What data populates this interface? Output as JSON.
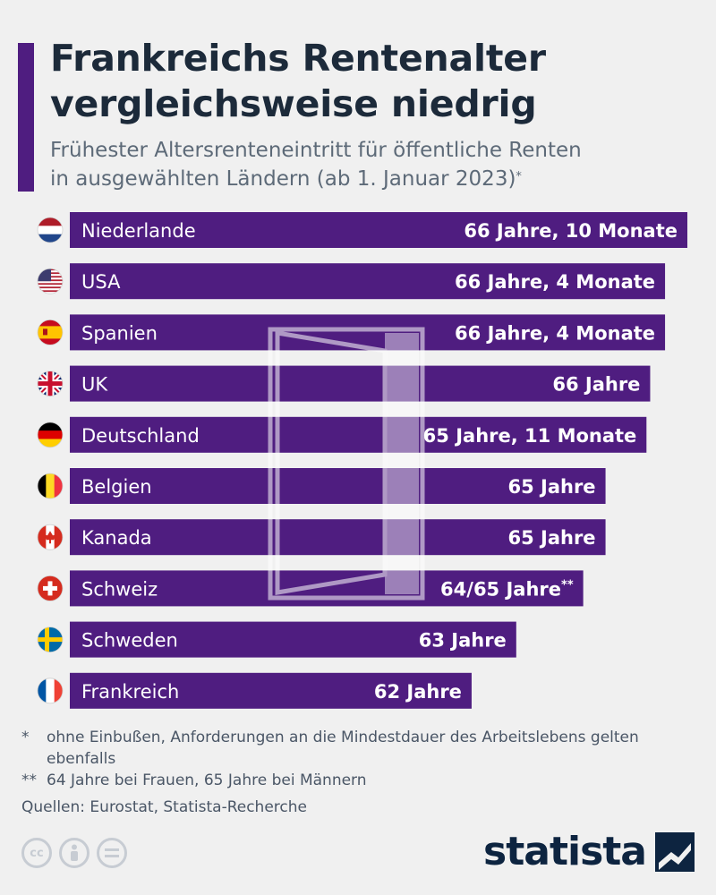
{
  "header": {
    "title_line1": "Frankreichs Rentenalter",
    "title_line2": "vergleichsweise niedrig",
    "subtitle_line1": "Frühester Altersrenteneintritt für öffentliche Renten",
    "subtitle_line2": "in ausgewählten Ländern (ab 1. Januar 2023)",
    "subtitle_mark": "*"
  },
  "colors": {
    "bar": "#4f1d80",
    "accent": "#4f1d80",
    "watermark": "#ffffff"
  },
  "chart_data": {
    "type": "bar",
    "orientation": "horizontal",
    "unit": "Jahre",
    "categories": [
      "Niederlande",
      "USA",
      "Spanien",
      "UK",
      "Deutschland",
      "Belgien",
      "Kanada",
      "Schweiz",
      "Schweden",
      "Frankreich"
    ],
    "values": [
      66.833,
      66.333,
      66.333,
      66.0,
      65.917,
      65.0,
      65.0,
      64.5,
      63.0,
      62.0
    ],
    "value_labels": [
      "66 Jahre, 10 Monate",
      "66 Jahre, 4 Monate",
      "66 Jahre, 4 Monate",
      "66 Jahre",
      "65 Jahre, 11 Monate",
      "65 Jahre",
      "65 Jahre",
      "64/65 Jahre",
      "63 Jahre",
      "62 Jahre"
    ],
    "value_marks": [
      "",
      "",
      "",
      "",
      "",
      "",
      "",
      "**",
      "",
      ""
    ],
    "flags": [
      "flag-nl-icon",
      "flag-us-icon",
      "flag-es-icon",
      "flag-gb-icon",
      "flag-de-icon",
      "flag-be-icon",
      "flag-ca-icon",
      "flag-ch-icon",
      "flag-se-icon",
      "flag-fr-icon"
    ],
    "xlim": [
      0,
      66.833
    ],
    "title": "",
    "xlabel": "",
    "ylabel": "",
    "grid": false,
    "legend": "none"
  },
  "footnotes": {
    "mark1": "*",
    "note1": "ohne Einbußen, Anforderungen an die Mindestdauer des Arbeitslebens gelten ebenfalls",
    "mark2": "**",
    "note2": "64 Jahre bei Frauen, 65 Jahre bei Männern",
    "sources": "Quellen: Eurostat, Statista-Recherche"
  },
  "license_icons": [
    "cc-icon",
    "person-icon",
    "equals-icon"
  ],
  "brand": {
    "name": "statista"
  }
}
